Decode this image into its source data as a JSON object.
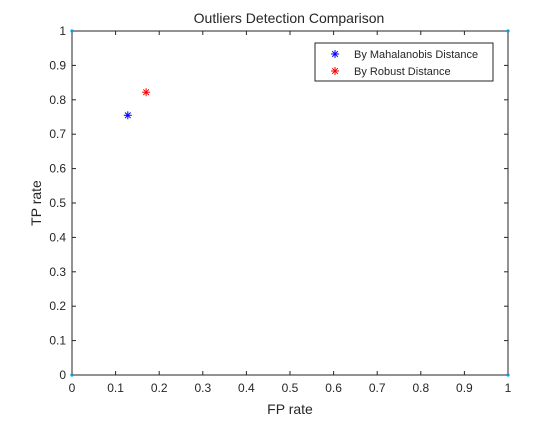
{
  "chart_data": {
    "type": "scatter",
    "title": "Outliers Detection Comparison",
    "xlabel": "FP rate",
    "ylabel": "TP rate",
    "xlim": [
      0,
      1
    ],
    "ylim": [
      0,
      1
    ],
    "xticks": [
      0,
      0.1,
      0.2,
      0.3,
      0.4,
      0.5,
      0.6,
      0.7,
      0.8,
      0.9,
      1
    ],
    "yticks": [
      0,
      0.1,
      0.2,
      0.3,
      0.4,
      0.5,
      0.6,
      0.7,
      0.8,
      0.9,
      1
    ],
    "xtick_labels": [
      "0",
      "0.1",
      "0.2",
      "0.3",
      "0.4",
      "0.5",
      "0.6",
      "0.7",
      "0.8",
      "0.9",
      "1"
    ],
    "ytick_labels": [
      "0",
      "0.1",
      "0.2",
      "0.3",
      "0.4",
      "0.5",
      "0.6",
      "0.7",
      "0.8",
      "0.9",
      "1"
    ],
    "grid": false,
    "legend_position": "top-right",
    "marker": "asterisk",
    "series": [
      {
        "name": "By Mahalanobis Distance",
        "color": "#0000ff",
        "points": [
          {
            "x": 0.128,
            "y": 0.755
          }
        ]
      },
      {
        "name": "By Robust Distance",
        "color": "#ff0000",
        "points": [
          {
            "x": 0.17,
            "y": 0.822
          }
        ]
      }
    ],
    "corner_markers": {
      "color": "#00a0e0",
      "points": [
        {
          "x": 0,
          "y": 0
        },
        {
          "x": 1,
          "y": 0
        },
        {
          "x": 0,
          "y": 1
        },
        {
          "x": 1,
          "y": 1
        }
      ]
    }
  }
}
